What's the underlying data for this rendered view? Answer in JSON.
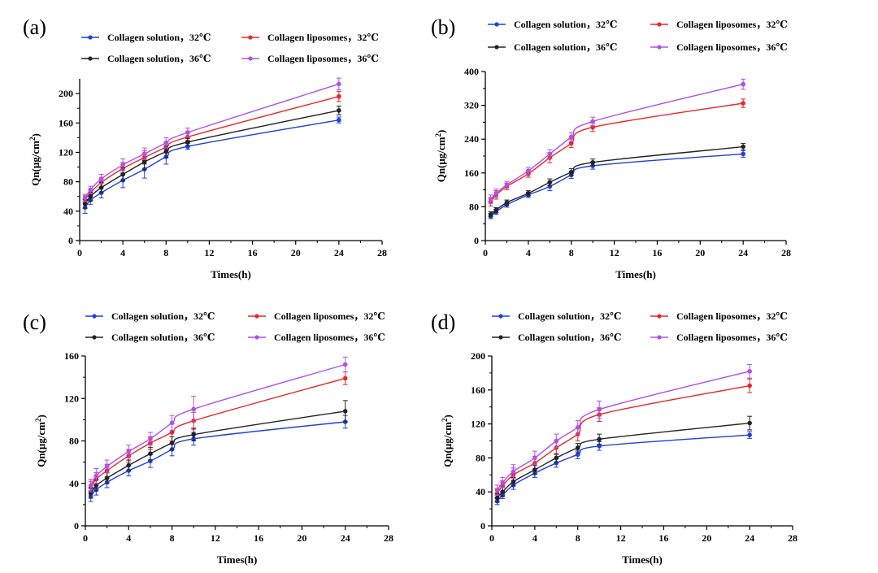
{
  "colors": {
    "sol32": "#1f3fe0",
    "lip32": "#e8272b",
    "sol36": "#222222",
    "lip36": "#b050e8",
    "axis": "#000000"
  },
  "chart_data": [
    {
      "type": "line",
      "panel_label": "(a)",
      "xlabel": "Times(h)",
      "ylabel": "Qn(μg/cm²)",
      "ylabel_main": "Qn(μg/cm",
      "ylabel_sup": "2",
      "ylabel_end": ")",
      "xlim": [
        0,
        28
      ],
      "ylim": [
        0,
        220
      ],
      "xticks": [
        0,
        4,
        8,
        12,
        16,
        20,
        24,
        28
      ],
      "yticks": [
        0,
        40,
        80,
        120,
        160,
        200
      ],
      "x": [
        0.5,
        1,
        2,
        4,
        6,
        8,
        10,
        24
      ],
      "series": [
        {
          "name": "Collagen solution，32℃",
          "color_key": "sol32",
          "values": [
            45,
            55,
            65,
            82,
            97,
            114,
            128,
            164
          ],
          "errors": [
            8,
            6,
            7,
            10,
            12,
            10,
            4,
            4
          ]
        },
        {
          "name": "Collagen liposomes，32℃",
          "color_key": "lip32",
          "values": [
            56,
            65,
            79,
            98,
            113,
            127,
            141,
            196
          ],
          "errors": [
            5,
            5,
            6,
            8,
            9,
            7,
            5,
            7
          ]
        },
        {
          "name": "Collagen solution，36℃",
          "color_key": "sol36",
          "values": [
            50,
            60,
            72,
            90,
            107,
            121,
            134,
            177
          ],
          "errors": [
            6,
            6,
            7,
            9,
            10,
            8,
            5,
            6
          ]
        },
        {
          "name": "Collagen liposomes，36℃",
          "color_key": "lip36",
          "values": [
            58,
            69,
            84,
            103,
            118,
            133,
            147,
            213
          ],
          "errors": [
            5,
            5,
            6,
            8,
            8,
            7,
            6,
            8
          ]
        }
      ]
    },
    {
      "type": "line",
      "panel_label": "(b)",
      "xlabel": "Times(h)",
      "ylabel": "Qn(μg/cm²)",
      "ylabel_main": "Qn(μg/cm",
      "ylabel_sup": "2",
      "ylabel_end": ")",
      "xlim": [
        0,
        28
      ],
      "ylim": [
        0,
        400
      ],
      "xticks": [
        0,
        4,
        8,
        12,
        16,
        20,
        24,
        28
      ],
      "yticks": [
        0,
        80,
        160,
        240,
        320,
        400
      ],
      "x": [
        0.5,
        1,
        2,
        4,
        6,
        8,
        10,
        24
      ],
      "series": [
        {
          "name": "Collagen solution，32℃",
          "color_key": "sol32",
          "values": [
            58,
            68,
            85,
            108,
            128,
            155,
            177,
            205
          ],
          "errors": [
            6,
            6,
            6,
            6,
            10,
            8,
            8,
            8
          ]
        },
        {
          "name": "Collagen liposomes，32℃",
          "color_key": "lip32",
          "values": [
            92,
            108,
            128,
            158,
            196,
            230,
            268,
            325
          ],
          "errors": [
            10,
            10,
            8,
            8,
            12,
            10,
            10,
            10
          ]
        },
        {
          "name": "Collagen solution，36℃",
          "color_key": "sol36",
          "values": [
            62,
            72,
            90,
            112,
            138,
            162,
            185,
            222
          ],
          "errors": [
            6,
            6,
            6,
            6,
            8,
            8,
            8,
            8
          ]
        },
        {
          "name": "Collagen liposomes，36℃",
          "color_key": "lip36",
          "values": [
            98,
            112,
            132,
            165,
            205,
            245,
            282,
            370
          ],
          "errors": [
            10,
            10,
            8,
            8,
            10,
            10,
            10,
            12
          ]
        }
      ]
    },
    {
      "type": "line",
      "panel_label": "(c)",
      "xlabel": "Times(h)",
      "ylabel": "Qn(μg/cm²)",
      "ylabel_main": "Qn(μg/cm",
      "ylabel_sup": "2",
      "ylabel_end": ")",
      "xlim": [
        0,
        28
      ],
      "ylim": [
        0,
        160
      ],
      "xticks": [
        0,
        4,
        8,
        12,
        16,
        20,
        24,
        28
      ],
      "yticks": [
        0,
        40,
        80,
        120,
        160
      ],
      "x": [
        0.5,
        1,
        2,
        4,
        6,
        8,
        10,
        24
      ],
      "series": [
        {
          "name": "Collagen solution，32℃",
          "color_key": "sol32",
          "values": [
            28,
            34,
            41,
            52,
            61,
            72,
            82,
            98
          ],
          "errors": [
            5,
            5,
            5,
            5,
            6,
            6,
            6,
            6
          ]
        },
        {
          "name": "Collagen liposomes，32℃",
          "color_key": "lip32",
          "values": [
            36,
            44,
            52,
            66,
            78,
            88,
            99,
            139
          ],
          "errors": [
            6,
            6,
            6,
            6,
            6,
            8,
            8,
            6
          ]
        },
        {
          "name": "Collagen solution，36℃",
          "color_key": "sol36",
          "values": [
            31,
            38,
            45,
            57,
            68,
            78,
            86,
            108
          ],
          "errors": [
            5,
            5,
            5,
            5,
            6,
            6,
            6,
            10
          ]
        },
        {
          "name": "Collagen liposomes，36℃",
          "color_key": "lip36",
          "values": [
            38,
            47,
            56,
            70,
            82,
            97,
            110,
            152
          ],
          "errors": [
            6,
            7,
            6,
            6,
            6,
            7,
            12,
            7
          ]
        }
      ]
    },
    {
      "type": "line",
      "panel_label": "(d)",
      "xlabel": "Times(h)",
      "ylabel": "Qn(μg/cm²)",
      "ylabel_main": "Qn(μg/cm",
      "ylabel_sup": "2",
      "ylabel_end": ")",
      "xlim": [
        0,
        28
      ],
      "ylim": [
        0,
        200
      ],
      "xticks": [
        0,
        4,
        8,
        12,
        16,
        20,
        24,
        28
      ],
      "yticks": [
        0,
        40,
        80,
        120,
        160,
        200
      ],
      "x": [
        0.5,
        1,
        2,
        4,
        6,
        8,
        10,
        24
      ],
      "series": [
        {
          "name": "Collagen solution，32℃",
          "color_key": "sol32",
          "values": [
            29,
            36,
            48,
            62,
            74,
            84,
            94,
            107
          ],
          "errors": [
            4,
            4,
            5,
            5,
            5,
            5,
            5,
            4
          ]
        },
        {
          "name": "Collagen liposomes，32℃",
          "color_key": "lip32",
          "values": [
            38,
            47,
            60,
            74,
            92,
            108,
            131,
            165
          ],
          "errors": [
            6,
            6,
            8,
            8,
            8,
            8,
            8,
            8
          ]
        },
        {
          "name": "Collagen solution，36℃",
          "color_key": "sol36",
          "values": [
            33,
            40,
            52,
            66,
            80,
            92,
            102,
            121
          ],
          "errors": [
            5,
            5,
            5,
            5,
            5,
            5,
            6,
            8
          ]
        },
        {
          "name": "Collagen liposomes，36℃",
          "color_key": "lip36",
          "values": [
            42,
            51,
            64,
            80,
            100,
            116,
            137,
            182
          ],
          "errors": [
            6,
            6,
            8,
            8,
            8,
            8,
            10,
            8
          ]
        }
      ]
    }
  ]
}
